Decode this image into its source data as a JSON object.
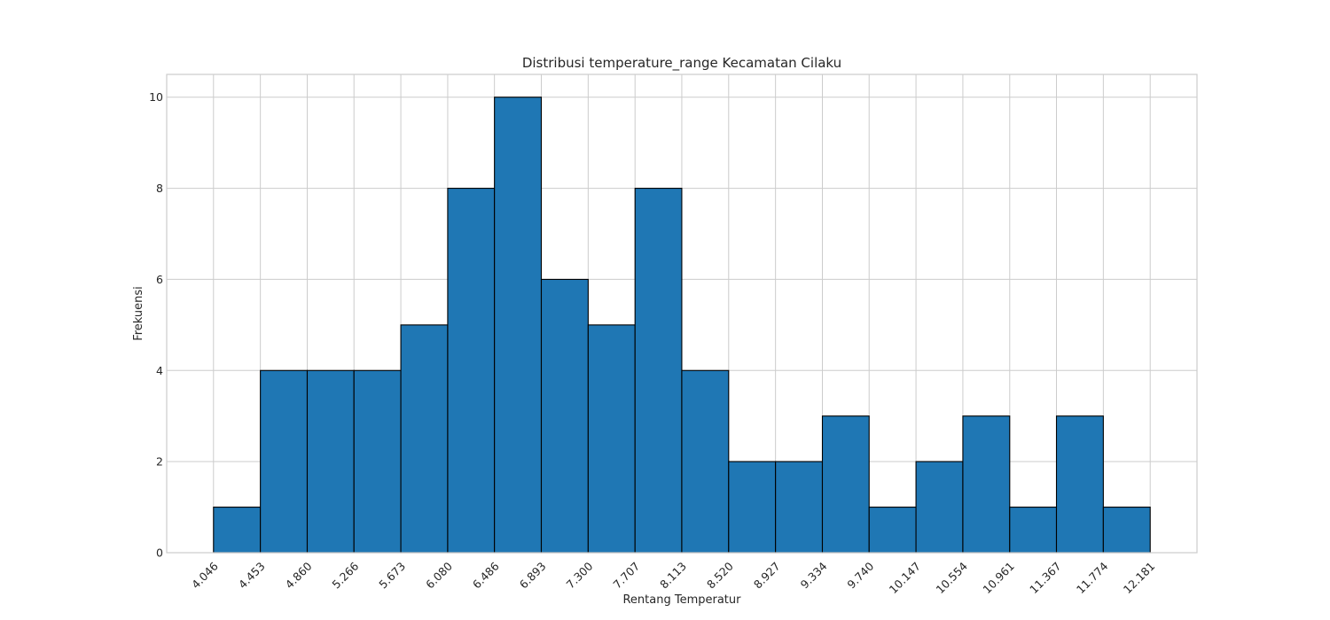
{
  "chart_data": {
    "type": "bar",
    "title": "Distribusi temperature_range Kecamatan Cilaku",
    "xlabel": "Rentang Temperatur",
    "ylabel": "Frekuensi",
    "bin_edges": [
      4.046,
      4.453,
      4.86,
      5.266,
      5.673,
      6.08,
      6.486,
      6.893,
      7.3,
      7.707,
      8.113,
      8.52,
      8.927,
      9.334,
      9.74,
      10.147,
      10.554,
      10.961,
      11.367,
      11.774,
      12.181
    ],
    "x_tick_labels": [
      "4.046",
      "4.453",
      "4.860",
      "5.266",
      "5.673",
      "6.080",
      "6.486",
      "6.893",
      "7.300",
      "7.707",
      "8.113",
      "8.520",
      "8.927",
      "9.334",
      "9.740",
      "10.147",
      "10.554",
      "10.961",
      "11.367",
      "11.774",
      "12.181"
    ],
    "values": [
      1,
      4,
      4,
      4,
      5,
      8,
      10,
      6,
      5,
      8,
      4,
      2,
      2,
      3,
      1,
      2,
      3,
      1,
      3,
      1
    ],
    "y_ticks": [
      0,
      2,
      4,
      6,
      8,
      10
    ],
    "y_tick_labels": [
      "0",
      "2",
      "4",
      "6",
      "8",
      "10"
    ],
    "xlim": [
      3.6395,
      12.5875
    ],
    "ylim": [
      0,
      10.5
    ],
    "grid": true,
    "bar_color": "#1f77b4",
    "edge_color": "#000000",
    "grid_color": "#cccccc"
  }
}
